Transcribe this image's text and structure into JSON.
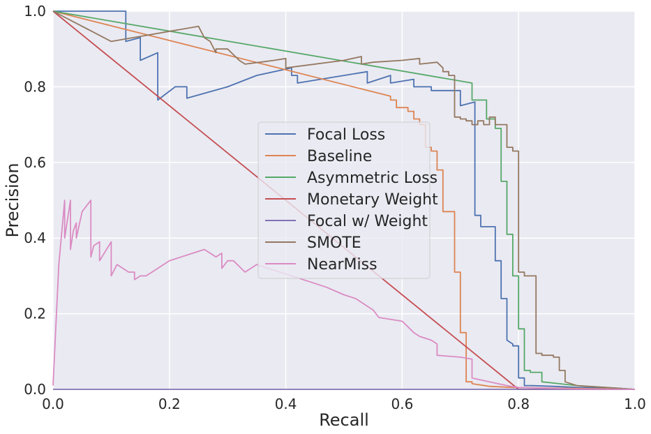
{
  "chart_data": {
    "type": "line",
    "title": "",
    "xlabel": "Recall",
    "ylabel": "Precision",
    "xlim": [
      0.0,
      1.0
    ],
    "ylim": [
      0.0,
      1.0
    ],
    "xticks": [
      0.0,
      0.2,
      0.4,
      0.6,
      0.8,
      1.0
    ],
    "yticks": [
      0.0,
      0.2,
      0.4,
      0.6,
      0.8,
      1.0
    ],
    "xtick_labels": [
      "0.0",
      "0.2",
      "0.4",
      "0.6",
      "0.8",
      "1.0"
    ],
    "ytick_labels": [
      "0.0",
      "0.2",
      "0.4",
      "0.6",
      "0.8",
      "1.0"
    ],
    "grid": true,
    "legend_position": "center",
    "series": [
      {
        "name": "Focal Loss",
        "color": "#4c72b0",
        "x": [
          0.0,
          0.125,
          0.125,
          0.125,
          0.15,
          0.15,
          0.18,
          0.18,
          0.21,
          0.23,
          0.23,
          0.3,
          0.35,
          0.41,
          0.41,
          0.42,
          0.42,
          0.5,
          0.54,
          0.54,
          0.58,
          0.58,
          0.62,
          0.62,
          0.65,
          0.65,
          0.7,
          0.7,
          0.725,
          0.725,
          0.735,
          0.735,
          0.76,
          0.76,
          0.77,
          0.77,
          0.78,
          0.78,
          0.79,
          0.79,
          0.8,
          0.8,
          0.81,
          0.81,
          0.82,
          0.86,
          0.9,
          0.97,
          1.0
        ],
        "y": [
          1.0,
          1.0,
          0.92,
          0.92,
          0.93,
          0.87,
          0.89,
          0.765,
          0.8,
          0.8,
          0.77,
          0.8,
          0.83,
          0.85,
          0.83,
          0.83,
          0.81,
          0.83,
          0.84,
          0.81,
          0.83,
          0.81,
          0.82,
          0.8,
          0.8,
          0.79,
          0.79,
          0.75,
          0.76,
          0.46,
          0.46,
          0.43,
          0.43,
          0.34,
          0.34,
          0.24,
          0.24,
          0.13,
          0.12,
          0.115,
          0.115,
          0.03,
          0.03,
          0.01,
          0.01,
          0.008,
          0.005,
          0.003,
          0.0
        ]
      },
      {
        "name": "Baseline",
        "color": "#dd8452",
        "x": [
          0.0,
          0.58,
          0.58,
          0.59,
          0.59,
          0.61,
          0.61,
          0.62,
          0.62,
          0.63,
          0.63,
          0.64,
          0.64,
          0.65,
          0.65,
          0.66,
          0.66,
          0.67,
          0.67,
          0.69,
          0.69,
          0.7,
          0.7,
          0.71,
          0.71,
          0.72,
          0.72,
          0.75,
          0.79,
          1.0
        ],
        "y": [
          1.0,
          0.775,
          0.765,
          0.765,
          0.745,
          0.745,
          0.735,
          0.735,
          0.715,
          0.715,
          0.7,
          0.7,
          0.64,
          0.64,
          0.63,
          0.63,
          0.58,
          0.58,
          0.47,
          0.47,
          0.31,
          0.31,
          0.15,
          0.15,
          0.02,
          0.02,
          0.015,
          0.008,
          0.005,
          0.0
        ]
      },
      {
        "name": "Asymmetric Loss",
        "color": "#55a868",
        "x": [
          0.0,
          0.72,
          0.72,
          0.745,
          0.745,
          0.76,
          0.76,
          0.77,
          0.77,
          0.78,
          0.78,
          0.79,
          0.79,
          0.8,
          0.8,
          0.81,
          0.81,
          0.82,
          0.82,
          0.84,
          0.84,
          0.87,
          0.9,
          0.95,
          1.0
        ],
        "y": [
          1.0,
          0.81,
          0.765,
          0.765,
          0.715,
          0.715,
          0.69,
          0.69,
          0.55,
          0.55,
          0.41,
          0.41,
          0.3,
          0.3,
          0.16,
          0.16,
          0.05,
          0.05,
          0.045,
          0.045,
          0.02,
          0.015,
          0.01,
          0.005,
          0.0
        ]
      },
      {
        "name": "Monetary Weight",
        "color": "#c44e52",
        "x": [
          0.0,
          0.8,
          0.8,
          1.0
        ],
        "y": [
          1.0,
          0.0,
          0.0,
          0.0
        ]
      },
      {
        "name": "Focal w/ Weight",
        "color": "#8172b2",
        "x": [
          0.0,
          1.0
        ],
        "y": [
          0.0,
          0.0
        ]
      },
      {
        "name": "SMOTE",
        "color": "#937860",
        "x": [
          0.0,
          0.1,
          0.25,
          0.26,
          0.26,
          0.27,
          0.28,
          0.28,
          0.3,
          0.32,
          0.33,
          0.38,
          0.4,
          0.4,
          0.5,
          0.53,
          0.53,
          0.55,
          0.6,
          0.63,
          0.63,
          0.66,
          0.67,
          0.67,
          0.68,
          0.68,
          0.69,
          0.69,
          0.7,
          0.7,
          0.71,
          0.71,
          0.72,
          0.72,
          0.73,
          0.73,
          0.74,
          0.74,
          0.75,
          0.75,
          0.76,
          0.76,
          0.78,
          0.78,
          0.79,
          0.79,
          0.8,
          0.8,
          0.81,
          0.81,
          0.82,
          0.82,
          0.83,
          0.83,
          0.84,
          0.84,
          0.86,
          0.86,
          0.87,
          0.87,
          0.88,
          0.88,
          0.9,
          0.95,
          1.0
        ],
        "y": [
          1.0,
          0.92,
          0.96,
          0.93,
          0.93,
          0.92,
          0.89,
          0.9,
          0.9,
          0.87,
          0.86,
          0.87,
          0.875,
          0.85,
          0.87,
          0.88,
          0.86,
          0.865,
          0.87,
          0.875,
          0.86,
          0.865,
          0.85,
          0.84,
          0.84,
          0.83,
          0.83,
          0.72,
          0.72,
          0.715,
          0.715,
          0.71,
          0.71,
          0.7,
          0.7,
          0.71,
          0.71,
          0.7,
          0.7,
          0.72,
          0.72,
          0.7,
          0.7,
          0.64,
          0.64,
          0.63,
          0.63,
          0.31,
          0.31,
          0.3,
          0.3,
          0.3,
          0.3,
          0.095,
          0.095,
          0.09,
          0.09,
          0.085,
          0.085,
          0.05,
          0.05,
          0.02,
          0.01,
          0.005,
          0.0
        ]
      },
      {
        "name": "NearMiss",
        "color": "#da8bc3",
        "x": [
          0.0,
          0.01,
          0.02,
          0.02,
          0.025,
          0.03,
          0.03,
          0.035,
          0.04,
          0.04,
          0.05,
          0.065,
          0.065,
          0.07,
          0.08,
          0.08,
          0.1,
          0.1,
          0.11,
          0.13,
          0.14,
          0.14,
          0.15,
          0.16,
          0.18,
          0.2,
          0.22,
          0.24,
          0.26,
          0.27,
          0.28,
          0.29,
          0.29,
          0.3,
          0.31,
          0.33,
          0.35,
          0.37,
          0.39,
          0.41,
          0.43,
          0.45,
          0.47,
          0.5,
          0.52,
          0.55,
          0.56,
          0.6,
          0.62,
          0.63,
          0.65,
          0.66,
          0.66,
          0.7,
          0.72,
          0.72,
          0.75,
          0.78,
          0.8,
          0.85,
          0.9,
          1.0
        ],
        "y": [
          0.01,
          0.33,
          0.5,
          0.4,
          0.45,
          0.5,
          0.37,
          0.42,
          0.44,
          0.4,
          0.47,
          0.5,
          0.35,
          0.38,
          0.39,
          0.34,
          0.39,
          0.3,
          0.33,
          0.31,
          0.31,
          0.29,
          0.3,
          0.3,
          0.32,
          0.34,
          0.35,
          0.36,
          0.37,
          0.36,
          0.35,
          0.36,
          0.32,
          0.34,
          0.34,
          0.31,
          0.33,
          0.32,
          0.31,
          0.3,
          0.29,
          0.28,
          0.27,
          0.25,
          0.24,
          0.21,
          0.19,
          0.18,
          0.15,
          0.14,
          0.13,
          0.12,
          0.09,
          0.085,
          0.08,
          0.03,
          0.02,
          0.01,
          0.005,
          0.003,
          0.001,
          0.0
        ]
      }
    ]
  }
}
